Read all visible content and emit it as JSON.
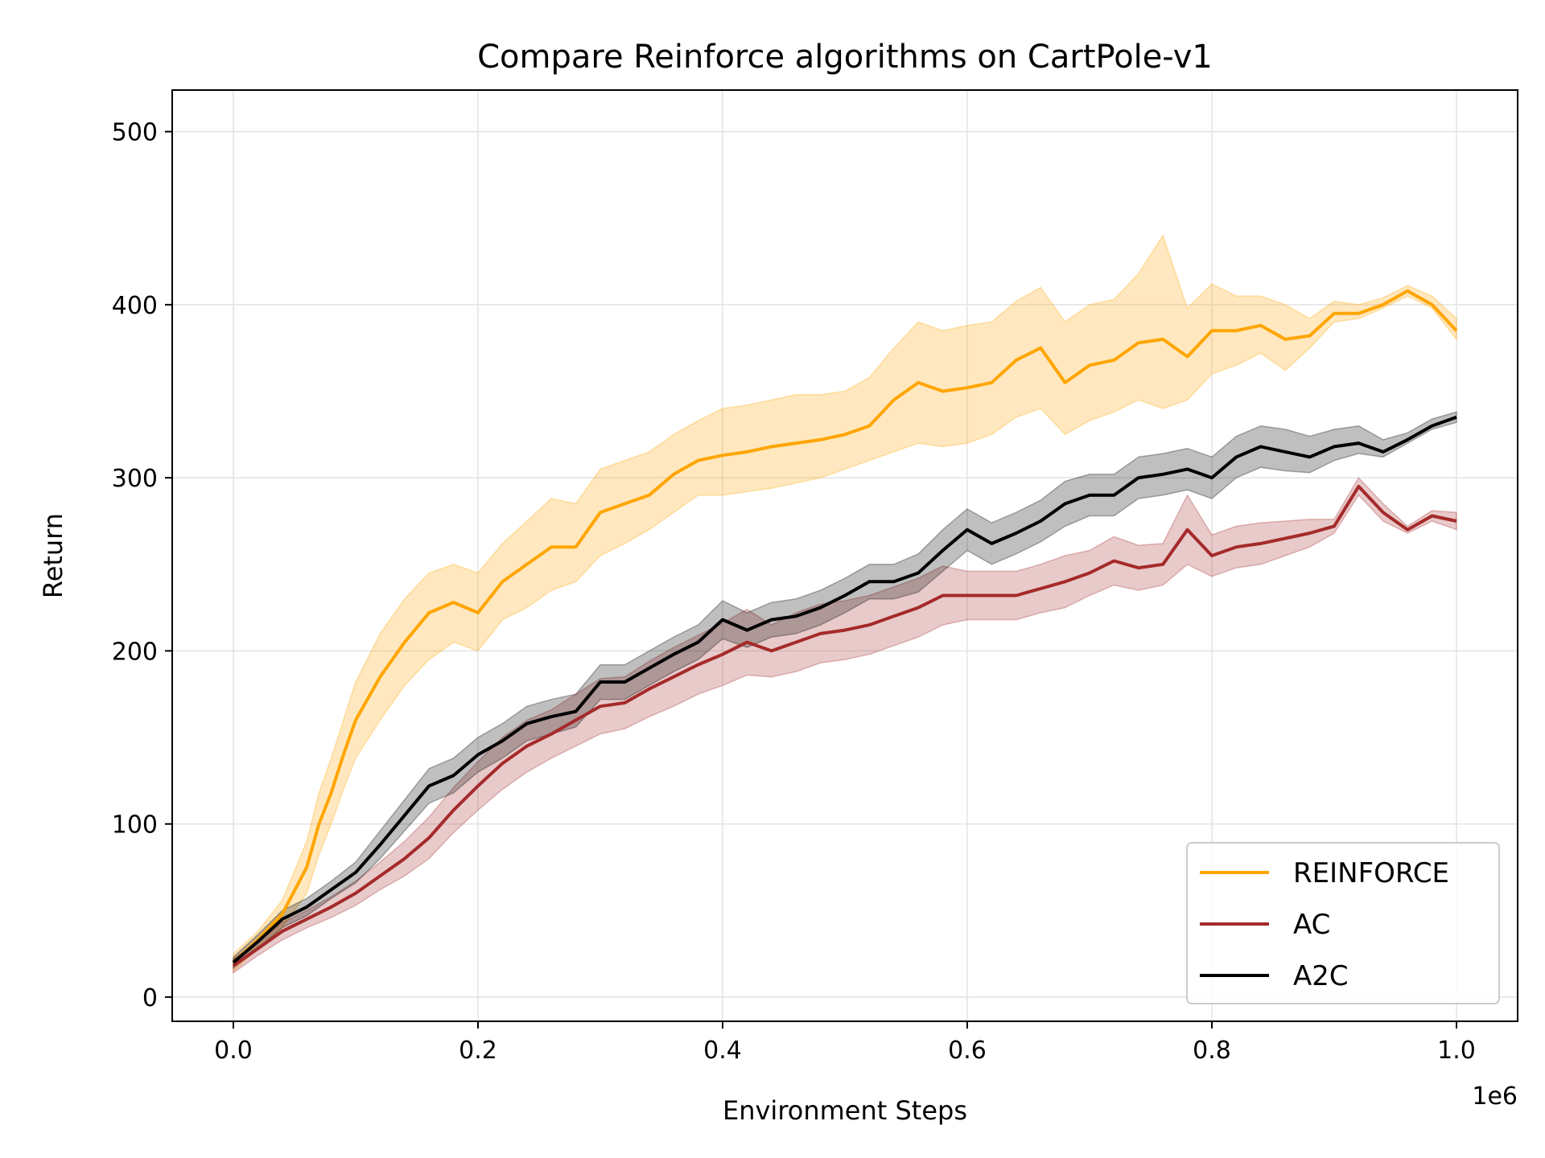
{
  "chart_data": {
    "type": "line",
    "title": "Compare Reinforce algorithms on CartPole-v1",
    "xlabel": "Environment Steps",
    "ylabel": "Return",
    "x_offset_label": "1e6",
    "xlim": [
      -0.05,
      1.05
    ],
    "ylim": [
      -14,
      524
    ],
    "xticks": [
      0.0,
      0.2,
      0.4,
      0.6,
      0.8,
      1.0
    ],
    "xtick_labels": [
      "0.0",
      "0.2",
      "0.4",
      "0.6",
      "0.8",
      "1.0"
    ],
    "yticks": [
      0,
      100,
      200,
      300,
      400,
      500
    ],
    "ytick_labels": [
      "0",
      "100",
      "200",
      "300",
      "400",
      "500"
    ],
    "grid": true,
    "legend_position": "lower-right",
    "series": [
      {
        "name": "REINFORCE",
        "color": "#FFA500",
        "x": [
          0.0,
          0.02,
          0.04,
          0.06,
          0.07,
          0.08,
          0.09,
          0.1,
          0.12,
          0.14,
          0.16,
          0.18,
          0.2,
          0.22,
          0.24,
          0.26,
          0.28,
          0.3,
          0.32,
          0.34,
          0.36,
          0.38,
          0.4,
          0.42,
          0.44,
          0.46,
          0.48,
          0.5,
          0.52,
          0.54,
          0.56,
          0.58,
          0.6,
          0.62,
          0.64,
          0.66,
          0.68,
          0.7,
          0.72,
          0.74,
          0.76,
          0.78,
          0.8,
          0.82,
          0.84,
          0.86,
          0.88,
          0.9,
          0.92,
          0.94,
          0.96,
          0.98,
          1.0
        ],
        "y": [
          20,
          33,
          48,
          75,
          100,
          118,
          140,
          160,
          185,
          205,
          222,
          228,
          222,
          240,
          250,
          260,
          260,
          280,
          285,
          290,
          302,
          310,
          313,
          315,
          318,
          320,
          322,
          325,
          330,
          345,
          355,
          350,
          352,
          355,
          368,
          375,
          355,
          365,
          368,
          378,
          380,
          370,
          385,
          385,
          388,
          380,
          382,
          395,
          395,
          400,
          408,
          400,
          385
        ],
        "lower": [
          15,
          28,
          40,
          60,
          82,
          100,
          120,
          138,
          160,
          180,
          195,
          205,
          200,
          218,
          225,
          235,
          240,
          255,
          262,
          270,
          280,
          290,
          290,
          292,
          294,
          297,
          300,
          305,
          310,
          315,
          320,
          318,
          320,
          325,
          335,
          340,
          325,
          333,
          338,
          345,
          340,
          345,
          360,
          365,
          372,
          362,
          375,
          390,
          392,
          398,
          405,
          398,
          380
        ],
        "upper": [
          25,
          38,
          56,
          90,
          118,
          138,
          160,
          182,
          210,
          230,
          245,
          250,
          245,
          262,
          275,
          288,
          285,
          305,
          310,
          315,
          325,
          333,
          340,
          342,
          345,
          348,
          348,
          350,
          358,
          375,
          390,
          385,
          388,
          390,
          402,
          410,
          390,
          400,
          403,
          418,
          440,
          398,
          412,
          405,
          405,
          400,
          392,
          402,
          400,
          404,
          411,
          405,
          392
        ]
      },
      {
        "name": "AC",
        "color": "#A52A2A",
        "x": [
          0.0,
          0.02,
          0.04,
          0.06,
          0.08,
          0.1,
          0.12,
          0.14,
          0.16,
          0.18,
          0.2,
          0.22,
          0.24,
          0.26,
          0.28,
          0.3,
          0.32,
          0.34,
          0.36,
          0.38,
          0.4,
          0.42,
          0.44,
          0.46,
          0.48,
          0.5,
          0.52,
          0.54,
          0.56,
          0.58,
          0.6,
          0.62,
          0.64,
          0.66,
          0.68,
          0.7,
          0.72,
          0.74,
          0.76,
          0.78,
          0.8,
          0.82,
          0.84,
          0.86,
          0.88,
          0.9,
          0.92,
          0.94,
          0.96,
          0.98,
          1.0
        ],
        "y": [
          18,
          28,
          38,
          45,
          52,
          60,
          70,
          80,
          92,
          108,
          122,
          135,
          145,
          152,
          160,
          168,
          170,
          178,
          185,
          192,
          198,
          205,
          200,
          205,
          210,
          212,
          215,
          220,
          225,
          232,
          232,
          232,
          232,
          236,
          240,
          245,
          252,
          248,
          250,
          270,
          255,
          260,
          262,
          265,
          268,
          272,
          295,
          280,
          270,
          278,
          275
        ],
        "lower": [
          14,
          24,
          33,
          40,
          46,
          53,
          62,
          70,
          80,
          95,
          108,
          120,
          130,
          138,
          145,
          152,
          155,
          162,
          168,
          175,
          180,
          186,
          185,
          188,
          193,
          195,
          198,
          203,
          208,
          215,
          218,
          218,
          218,
          222,
          225,
          232,
          238,
          235,
          238,
          250,
          243,
          248,
          250,
          255,
          260,
          268,
          290,
          275,
          268,
          275,
          270
        ],
        "upper": [
          22,
          32,
          43,
          50,
          58,
          67,
          78,
          90,
          104,
          121,
          136,
          150,
          160,
          166,
          175,
          184,
          185,
          194,
          202,
          209,
          216,
          224,
          215,
          222,
          227,
          229,
          232,
          237,
          242,
          249,
          246,
          246,
          246,
          250,
          255,
          258,
          266,
          261,
          262,
          290,
          267,
          272,
          274,
          275,
          276,
          276,
          300,
          285,
          272,
          281,
          280
        ]
      },
      {
        "name": "A2C",
        "color": "#000000",
        "x": [
          0.0,
          0.02,
          0.04,
          0.06,
          0.08,
          0.1,
          0.12,
          0.14,
          0.16,
          0.18,
          0.2,
          0.22,
          0.24,
          0.26,
          0.28,
          0.3,
          0.32,
          0.34,
          0.36,
          0.38,
          0.4,
          0.42,
          0.44,
          0.46,
          0.48,
          0.5,
          0.52,
          0.54,
          0.56,
          0.58,
          0.6,
          0.62,
          0.64,
          0.66,
          0.68,
          0.7,
          0.72,
          0.74,
          0.76,
          0.78,
          0.8,
          0.82,
          0.84,
          0.86,
          0.88,
          0.9,
          0.92,
          0.94,
          0.96,
          0.98,
          1.0
        ],
        "y": [
          20,
          32,
          45,
          52,
          62,
          72,
          88,
          105,
          122,
          128,
          140,
          148,
          158,
          162,
          165,
          182,
          182,
          190,
          198,
          205,
          218,
          212,
          218,
          220,
          225,
          232,
          240,
          240,
          245,
          258,
          270,
          262,
          268,
          275,
          285,
          290,
          290,
          300,
          302,
          305,
          300,
          312,
          318,
          315,
          312,
          318,
          320,
          315,
          322,
          330,
          335
        ],
        "lower": [
          17,
          28,
          40,
          47,
          57,
          66,
          80,
          96,
          112,
          118,
          130,
          138,
          148,
          152,
          156,
          172,
          172,
          180,
          188,
          195,
          207,
          202,
          208,
          210,
          215,
          222,
          230,
          230,
          234,
          246,
          258,
          250,
          256,
          263,
          272,
          278,
          278,
          288,
          290,
          293,
          288,
          300,
          306,
          304,
          303,
          310,
          314,
          312,
          320,
          328,
          332
        ],
        "upper": [
          23,
          36,
          50,
          57,
          67,
          78,
          96,
          114,
          132,
          138,
          150,
          158,
          168,
          172,
          175,
          192,
          192,
          200,
          208,
          215,
          229,
          222,
          228,
          230,
          235,
          242,
          250,
          250,
          256,
          270,
          282,
          274,
          280,
          287,
          298,
          302,
          302,
          312,
          314,
          317,
          312,
          324,
          330,
          328,
          324,
          328,
          330,
          322,
          326,
          334,
          338
        ]
      }
    ]
  }
}
